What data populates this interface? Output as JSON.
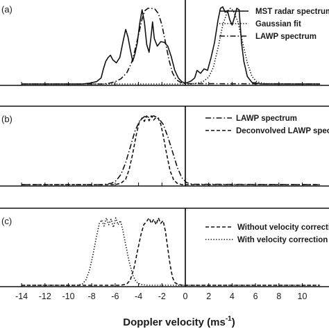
{
  "chart_data": [
    {
      "type": "line",
      "panel_label": "(a)",
      "xlim": [
        -14,
        11.5
      ],
      "series": [
        {
          "name": "MST radar spectrum",
          "style": "solid",
          "points": [
            [
              -14,
              0
            ],
            [
              -8.8,
              0
            ],
            [
              -8.2,
              0.01
            ],
            [
              -7.6,
              0.03
            ],
            [
              -7.2,
              0.08
            ],
            [
              -7.0,
              0.2
            ],
            [
              -6.8,
              0.3
            ],
            [
              -6.6,
              0.35
            ],
            [
              -6.4,
              0.38
            ],
            [
              -6.2,
              0.32
            ],
            [
              -5.9,
              0.28
            ],
            [
              -5.6,
              0.35
            ],
            [
              -5.3,
              0.58
            ],
            [
              -5.1,
              0.72
            ],
            [
              -4.9,
              0.62
            ],
            [
              -4.7,
              0.45
            ],
            [
              -4.5,
              0.3
            ],
            [
              -4.3,
              0.4
            ],
            [
              -4.1,
              0.55
            ],
            [
              -3.9,
              0.8
            ],
            [
              -3.7,
              0.98
            ],
            [
              -3.5,
              0.82
            ],
            [
              -3.3,
              0.52
            ],
            [
              -3.1,
              0.42
            ],
            [
              -2.95,
              0.6
            ],
            [
              -2.8,
              0.82
            ],
            [
              -2.65,
              0.6
            ],
            [
              -2.4,
              0.5
            ],
            [
              -2.1,
              0.56
            ],
            [
              -1.8,
              0.55
            ],
            [
              -1.5,
              0.5
            ],
            [
              -1.2,
              0.36
            ],
            [
              -0.9,
              0.18
            ],
            [
              -0.6,
              0.08
            ],
            [
              -0.3,
              0.03
            ],
            [
              0,
              0.01
            ],
            [
              0.2,
              0.02
            ],
            [
              0.5,
              0.04
            ],
            [
              0.8,
              0.08
            ],
            [
              1.0,
              0.18
            ],
            [
              1.3,
              0.14
            ],
            [
              1.6,
              0.2
            ],
            [
              1.9,
              0.18
            ],
            [
              2.2,
              0.35
            ],
            [
              2.5,
              0.55
            ],
            [
              2.8,
              0.85
            ],
            [
              3.0,
              1.0
            ],
            [
              3.2,
              1.02
            ],
            [
              3.4,
              0.95
            ],
            [
              3.6,
              0.97
            ],
            [
              3.8,
              0.85
            ],
            [
              4.0,
              0.78
            ],
            [
              4.2,
              0.88
            ],
            [
              4.4,
              1.0
            ],
            [
              4.6,
              0.98
            ],
            [
              4.8,
              0.55
            ],
            [
              5.0,
              0.3
            ],
            [
              5.3,
              0.1
            ],
            [
              5.7,
              0.02
            ],
            [
              6.5,
              0
            ],
            [
              11.5,
              0
            ]
          ]
        },
        {
          "name": "Gaussian fit",
          "style": "dot",
          "points": [
            [
              -14,
              0
            ],
            [
              0,
              0
            ],
            [
              0.5,
              0
            ],
            [
              1.0,
              0.01
            ],
            [
              1.5,
              0.03
            ],
            [
              2.0,
              0.09
            ],
            [
              2.4,
              0.22
            ],
            [
              2.8,
              0.48
            ],
            [
              3.2,
              0.78
            ],
            [
              3.6,
              0.96
            ],
            [
              3.85,
              1.0
            ],
            [
              4.1,
              0.97
            ],
            [
              4.5,
              0.82
            ],
            [
              4.9,
              0.55
            ],
            [
              5.3,
              0.28
            ],
            [
              5.7,
              0.1
            ],
            [
              6.1,
              0.03
            ],
            [
              6.8,
              0.005
            ],
            [
              11.5,
              0
            ]
          ]
        },
        {
          "name": "LAWP spectrum",
          "style": "dashdot",
          "points": [
            [
              -14,
              0
            ],
            [
              -7,
              0
            ],
            [
              -6.5,
              0.01
            ],
            [
              -6.0,
              0.03
            ],
            [
              -5.5,
              0.07
            ],
            [
              -5.0,
              0.15
            ],
            [
              -4.6,
              0.28
            ],
            [
              -4.3,
              0.45
            ],
            [
              -4.0,
              0.65
            ],
            [
              -3.7,
              0.86
            ],
            [
              -3.45,
              0.97
            ],
            [
              -3.2,
              1.0
            ],
            [
              -2.9,
              1.0
            ],
            [
              -2.6,
              0.99
            ],
            [
              -2.3,
              0.93
            ],
            [
              -2.0,
              0.78
            ],
            [
              -1.7,
              0.55
            ],
            [
              -1.4,
              0.32
            ],
            [
              -1.1,
              0.15
            ],
            [
              -0.8,
              0.06
            ],
            [
              -0.4,
              0.02
            ],
            [
              0,
              0.005
            ],
            [
              11.5,
              0
            ]
          ]
        }
      ]
    },
    {
      "type": "line",
      "panel_label": "(b)",
      "xlim": [
        -14,
        11.5
      ],
      "series": [
        {
          "name": "LAWP spectrum",
          "style": "dashdot",
          "points": [
            [
              -14,
              0
            ],
            [
              -7,
              0
            ],
            [
              -6.3,
              0.02
            ],
            [
              -5.9,
              0.06
            ],
            [
              -5.5,
              0.15
            ],
            [
              -5.1,
              0.32
            ],
            [
              -4.7,
              0.55
            ],
            [
              -4.3,
              0.78
            ],
            [
              -3.9,
              0.93
            ],
            [
              -3.5,
              0.99
            ],
            [
              -3.1,
              0.98
            ],
            [
              -2.7,
              1.0
            ],
            [
              -2.3,
              0.97
            ],
            [
              -1.9,
              0.88
            ],
            [
              -1.5,
              0.7
            ],
            [
              -1.1,
              0.48
            ],
            [
              -0.7,
              0.26
            ],
            [
              -0.3,
              0.1
            ],
            [
              0.1,
              0.03
            ],
            [
              0.6,
              0.005
            ],
            [
              11.5,
              0
            ]
          ]
        },
        {
          "name": "Deconvolved LAWP spectrum",
          "style": "dash",
          "points": [
            [
              -14,
              0
            ],
            [
              -6.0,
              0
            ],
            [
              -5.5,
              0.02
            ],
            [
              -5.1,
              0.08
            ],
            [
              -4.8,
              0.22
            ],
            [
              -4.5,
              0.45
            ],
            [
              -4.2,
              0.72
            ],
            [
              -3.95,
              0.9
            ],
            [
              -3.7,
              0.97
            ],
            [
              -3.5,
              0.92
            ],
            [
              -3.3,
              1.0
            ],
            [
              -3.1,
              0.93
            ],
            [
              -2.9,
              1.0
            ],
            [
              -2.7,
              0.94
            ],
            [
              -2.5,
              0.98
            ],
            [
              -2.3,
              0.96
            ],
            [
              -2.1,
              0.88
            ],
            [
              -1.9,
              0.72
            ],
            [
              -1.6,
              0.45
            ],
            [
              -1.3,
              0.2
            ],
            [
              -1.0,
              0.07
            ],
            [
              -0.7,
              0.02
            ],
            [
              -0.3,
              0
            ],
            [
              11.5,
              0
            ]
          ]
        }
      ]
    },
    {
      "type": "line",
      "panel_label": "(c)",
      "xlim": [
        -14,
        11.5
      ],
      "series": [
        {
          "name": "Without velocity correction",
          "style": "dash",
          "points": [
            [
              -14,
              0
            ],
            [
              -5.5,
              0
            ],
            [
              -5.0,
              0.02
            ],
            [
              -4.7,
              0.08
            ],
            [
              -4.4,
              0.25
            ],
            [
              -4.1,
              0.5
            ],
            [
              -3.8,
              0.75
            ],
            [
              -3.55,
              0.9
            ],
            [
              -3.3,
              0.95
            ],
            [
              -3.1,
              1.0
            ],
            [
              -2.9,
              0.92
            ],
            [
              -2.7,
              0.98
            ],
            [
              -2.5,
              0.9
            ],
            [
              -2.3,
              1.0
            ],
            [
              -2.1,
              0.92
            ],
            [
              -1.9,
              0.96
            ],
            [
              -1.7,
              0.8
            ],
            [
              -1.5,
              0.55
            ],
            [
              -1.3,
              0.3
            ],
            [
              -1.1,
              0.12
            ],
            [
              -0.9,
              0.04
            ],
            [
              -0.6,
              0.01
            ],
            [
              -0.2,
              0
            ],
            [
              11.5,
              0
            ]
          ]
        },
        {
          "name": "With velocity correction",
          "style": "dot",
          "points": [
            [
              -14,
              0
            ],
            [
              -9.2,
              0
            ],
            [
              -8.8,
              0.02
            ],
            [
              -8.5,
              0.08
            ],
            [
              -8.2,
              0.22
            ],
            [
              -7.9,
              0.45
            ],
            [
              -7.6,
              0.72
            ],
            [
              -7.35,
              0.92
            ],
            [
              -7.15,
              0.97
            ],
            [
              -6.95,
              0.88
            ],
            [
              -6.75,
              1.0
            ],
            [
              -6.55,
              0.9
            ],
            [
              -6.35,
              0.98
            ],
            [
              -6.15,
              0.86
            ],
            [
              -5.95,
              1.0
            ],
            [
              -5.75,
              0.9
            ],
            [
              -5.55,
              0.96
            ],
            [
              -5.35,
              0.82
            ],
            [
              -5.1,
              0.6
            ],
            [
              -4.8,
              0.35
            ],
            [
              -4.5,
              0.15
            ],
            [
              -4.2,
              0.05
            ],
            [
              -3.8,
              0.01
            ],
            [
              -3.2,
              0
            ],
            [
              11.5,
              0
            ]
          ]
        }
      ]
    }
  ],
  "axis": {
    "xlabel": "Doppler velocity (ms",
    "xlabel_sup": "-1",
    "xlabel_close": ")",
    "tick_labels": [
      "-14",
      "-12",
      "-10",
      "-8",
      "-6",
      "-4",
      "-2",
      "0",
      "2",
      "4",
      "6",
      "8",
      "10"
    ],
    "tick_values": [
      -14,
      -12,
      -10,
      -8,
      -6,
      -4,
      -2,
      0,
      2,
      4,
      6,
      8,
      10
    ]
  }
}
